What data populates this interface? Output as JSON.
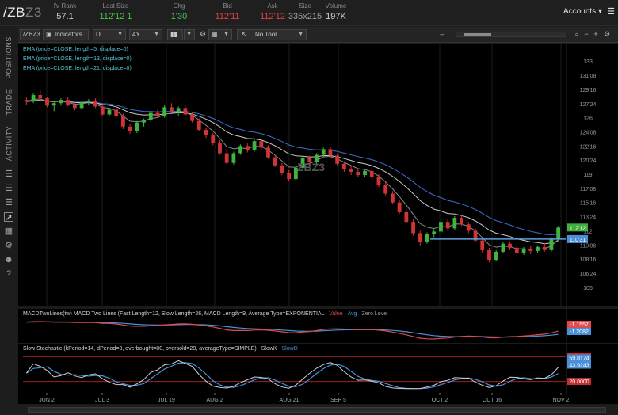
{
  "quote": {
    "symbol_main": "/ZB",
    "symbol_suffix": "Z3",
    "fields": [
      {
        "label": "IV Rank",
        "value": "57.1",
        "color": "#d0d0d0"
      },
      {
        "label": "Last Size",
        "value": "112'12 1",
        "color": "#46c24a"
      },
      {
        "label": "Chg",
        "value": "1'30",
        "color": "#46c24a"
      },
      {
        "label": "Bid",
        "value": "112'11",
        "color": "#e04040"
      },
      {
        "label": "Ask",
        "value": "112'12",
        "color": "#e04040"
      },
      {
        "label": "Size",
        "value": "335x215",
        "color": "#a0a0a0"
      },
      {
        "label": "Volume",
        "value": "197K",
        "color": "#d0d0d0"
      }
    ],
    "accounts_label": "Accounts",
    "menu_icon": "hamburger-icon"
  },
  "sidenav": {
    "tabs": [
      "POSITIONS",
      "TRADE",
      "ACTIVITY"
    ],
    "icons": [
      "list-icon",
      "list-icon",
      "list-icon",
      "chart-icon",
      "grid-icon",
      "settings-icon",
      "people-icon",
      "help-icon"
    ]
  },
  "toolbar": {
    "symbol": "/ZBZ3",
    "indicators_label": "Indicators",
    "aggregation": "D",
    "range": "4Y",
    "drawing_tool": "No Tool"
  },
  "price_panel": {
    "studies": [
      "EMA (price=CLOSE, length=5, displace=0)",
      "EMA (price=CLOSE, length=13, displace=0)",
      "EMA (price=CLOSE, length=21, displace=0)"
    ],
    "watermark": "ZBZ3",
    "y_ticks": [
      "133",
      "131'08",
      "129'16",
      "127'24",
      "126",
      "124'08",
      "122'16",
      "120'24",
      "119",
      "117'08",
      "115'16",
      "113'24",
      "112",
      "110'08",
      "108'16",
      "106'24",
      "105"
    ],
    "price_flags": [
      {
        "text": "112'12",
        "color": "#3fae3f"
      },
      {
        "text": "110'31",
        "color": "#4a90d9"
      }
    ]
  },
  "macd_panel": {
    "label": "MACDTwoLines(tw) MACD Two Lines (Fast Length=12, Slow Length=26, MACD Length=9, Average Type=EXPONENTIAL",
    "legend": [
      {
        "text": "Value",
        "color": "#e04a4a"
      },
      {
        "text": "Avg",
        "color": "#4a90d9"
      },
      {
        "text": "Zero Leve",
        "color": "#9a9a9a"
      }
    ],
    "flags": [
      {
        "text": "-1.1557",
        "color": "#e04a4a"
      },
      {
        "text": "-1.2082",
        "color": "#4a90d9"
      }
    ]
  },
  "stoch_panel": {
    "label": "Slow Stochastic (kPeriod=14, dPeriod=3, overbought=80, oversold=20, averageType=SIMPLE)",
    "legend": [
      {
        "text": "SlowK",
        "color": "#cfcfcf"
      },
      {
        "text": "SlowD",
        "color": "#4a90d9"
      }
    ],
    "flags": [
      {
        "text": "80.0000",
        "color": "#c03030"
      },
      {
        "text": "59.8174",
        "color": "#4a90d9"
      },
      {
        "text": "43.9243",
        "color": "#4a90d9"
      },
      {
        "text": "20.0000",
        "color": "#c03030"
      }
    ]
  },
  "x_axis": {
    "labels": [
      "JUN 2",
      "JUL 3",
      "JUL 19",
      "AUG 2",
      "AUG 21",
      "SEP 5",
      "OCT 2",
      "OCT 16",
      "NOV 2"
    ]
  },
  "chart_data": {
    "type": "candlestick",
    "y_axis_ticks": [
      133,
      131.25,
      129.5,
      127.75,
      126,
      124.25,
      122.5,
      120.75,
      119,
      117.25,
      115.5,
      113.75,
      112,
      110.25,
      108.5,
      106.75,
      105
    ],
    "ylim": [
      104,
      134
    ],
    "horizontal_line": 110.97,
    "ohlc": [
      [
        128.2,
        128.6,
        127.6,
        128.0
      ],
      [
        128.0,
        129.0,
        127.8,
        128.8
      ],
      [
        128.8,
        129.4,
        128.1,
        128.4
      ],
      [
        128.4,
        128.6,
        127.3,
        127.5
      ],
      [
        127.5,
        128.0,
        126.8,
        127.8
      ],
      [
        127.8,
        128.4,
        127.5,
        128.2
      ],
      [
        128.2,
        128.5,
        127.4,
        127.6
      ],
      [
        127.6,
        127.9,
        126.9,
        127.2
      ],
      [
        127.2,
        128.0,
        127.0,
        127.9
      ],
      [
        127.9,
        128.3,
        127.5,
        128.1
      ],
      [
        128.1,
        128.4,
        127.2,
        127.4
      ],
      [
        127.4,
        127.6,
        126.2,
        126.4
      ],
      [
        126.4,
        127.2,
        126.2,
        127.0
      ],
      [
        127.0,
        127.3,
        126.0,
        126.2
      ],
      [
        126.2,
        126.5,
        124.6,
        124.9
      ],
      [
        124.9,
        125.2,
        124.0,
        124.3
      ],
      [
        124.3,
        125.6,
        124.1,
        125.4
      ],
      [
        125.4,
        125.9,
        124.9,
        125.7
      ],
      [
        125.7,
        126.8,
        125.5,
        126.6
      ],
      [
        126.6,
        127.0,
        126.0,
        126.2
      ],
      [
        126.2,
        127.6,
        126.0,
        127.3
      ],
      [
        127.3,
        127.8,
        126.6,
        126.8
      ],
      [
        126.8,
        127.4,
        126.2,
        127.2
      ],
      [
        127.2,
        127.5,
        126.2,
        126.4
      ],
      [
        126.4,
        126.7,
        125.4,
        125.6
      ],
      [
        125.6,
        125.9,
        124.3,
        124.5
      ],
      [
        124.5,
        124.8,
        123.5,
        123.8
      ],
      [
        123.8,
        124.1,
        122.6,
        122.9
      ],
      [
        122.9,
        123.2,
        121.4,
        121.6
      ],
      [
        121.6,
        121.9,
        120.2,
        120.4
      ],
      [
        120.4,
        121.8,
        120.2,
        121.6
      ],
      [
        121.6,
        122.7,
        121.4,
        122.5
      ],
      [
        122.5,
        122.8,
        121.7,
        122.0
      ],
      [
        122.0,
        123.3,
        121.8,
        123.1
      ],
      [
        123.1,
        123.4,
        122.0,
        122.3
      ],
      [
        122.3,
        122.6,
        120.9,
        121.1
      ],
      [
        121.1,
        121.4,
        119.9,
        120.1
      ],
      [
        120.1,
        120.4,
        118.9,
        119.2
      ],
      [
        119.2,
        119.5,
        118.1,
        118.4
      ],
      [
        118.4,
        120.0,
        118.2,
        119.8
      ],
      [
        119.8,
        121.2,
        119.6,
        121.0
      ],
      [
        121.0,
        121.3,
        120.1,
        120.5
      ],
      [
        120.5,
        121.6,
        120.3,
        121.4
      ],
      [
        121.4,
        122.3,
        121.2,
        122.1
      ],
      [
        122.1,
        122.4,
        121.0,
        121.3
      ],
      [
        121.3,
        121.6,
        120.0,
        120.3
      ],
      [
        120.3,
        120.6,
        119.3,
        119.6
      ],
      [
        119.6,
        120.0,
        118.9,
        119.3
      ],
      [
        119.3,
        119.6,
        118.6,
        118.9
      ],
      [
        118.9,
        119.6,
        118.7,
        119.4
      ],
      [
        119.4,
        119.7,
        118.4,
        118.7
      ],
      [
        118.7,
        119.0,
        117.4,
        117.7
      ],
      [
        117.7,
        118.0,
        116.4,
        116.6
      ],
      [
        116.6,
        116.9,
        115.3,
        115.5
      ],
      [
        115.5,
        115.8,
        114.1,
        114.3
      ],
      [
        114.3,
        114.6,
        112.9,
        113.1
      ],
      [
        113.1,
        113.4,
        111.4,
        111.7
      ],
      [
        111.7,
        112.0,
        110.2,
        110.6
      ],
      [
        110.6,
        111.8,
        110.4,
        111.6
      ],
      [
        111.6,
        112.2,
        111.2,
        111.9
      ],
      [
        111.9,
        113.4,
        111.7,
        113.1
      ],
      [
        113.1,
        113.4,
        112.0,
        112.3
      ],
      [
        112.3,
        113.8,
        112.1,
        113.6
      ],
      [
        113.6,
        113.9,
        112.6,
        112.8
      ],
      [
        112.8,
        113.1,
        111.7,
        112.0
      ],
      [
        112.0,
        112.3,
        110.6,
        110.8
      ],
      [
        110.8,
        111.1,
        109.3,
        109.6
      ],
      [
        109.6,
        109.9,
        108.1,
        108.4
      ],
      [
        108.4,
        109.6,
        108.2,
        109.4
      ],
      [
        109.4,
        110.6,
        109.2,
        110.4
      ],
      [
        110.4,
        110.7,
        109.6,
        109.9
      ],
      [
        109.9,
        110.3,
        109.0,
        109.2
      ],
      [
        109.2,
        110.0,
        109.0,
        109.8
      ],
      [
        109.8,
        110.1,
        109.1,
        109.5
      ],
      [
        109.5,
        110.2,
        109.3,
        110.0
      ],
      [
        110.0,
        110.5,
        109.4,
        109.6
      ],
      [
        109.6,
        111.2,
        109.4,
        111.0
      ],
      [
        111.0,
        112.6,
        110.8,
        112.4
      ]
    ]
  }
}
